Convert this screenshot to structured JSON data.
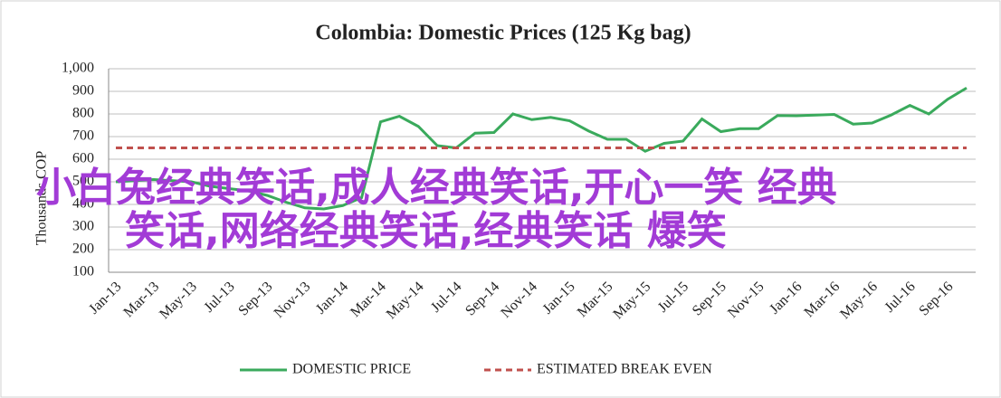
{
  "chart_data": {
    "type": "line",
    "title": "Colombia:  Domestic Prices (125 Kg bag)",
    "y_label": "Thousands COP",
    "categories": [
      "Jan-13",
      null,
      "Mar-13",
      null,
      "May-13",
      null,
      "Jul-13",
      null,
      "Sep-13",
      null,
      "Nov-13",
      null,
      "Jan-14",
      null,
      "Mar-14",
      null,
      "May-14",
      null,
      "Jul-14",
      null,
      "Sep-14",
      null,
      "Nov-14",
      null,
      "Jan-15",
      null,
      "Mar-15",
      null,
      "May-15",
      null,
      "Jul-15",
      null,
      "Sep-15",
      null,
      "Nov-15",
      null,
      "Jan-16",
      null,
      "Mar-16",
      null,
      "May-16",
      null,
      "Jul-16",
      null,
      "Sep-16",
      null
    ],
    "series": [
      {
        "name": "DOMESTIC PRICE",
        "color": "#3aaa5c",
        "dashed": false,
        "values": [
          500,
          505,
          510,
          505,
          500,
          480,
          470,
          460,
          440,
          410,
          385,
          380,
          395,
          430,
          765,
          790,
          745,
          660,
          650,
          715,
          718,
          800,
          775,
          785,
          770,
          725,
          688,
          688,
          635,
          670,
          680,
          778,
          722,
          735,
          735,
          793,
          792,
          795,
          798,
          755,
          760,
          795,
          838,
          800,
          865,
          915
        ]
      },
      {
        "name": "ESTIMATED BREAK EVEN",
        "color": "#c0504d",
        "dashed": true,
        "values": [
          650,
          650,
          650,
          650,
          650,
          650,
          650,
          650,
          650,
          650,
          650,
          650,
          650,
          650,
          650,
          650,
          650,
          650,
          650,
          650,
          650,
          650,
          650,
          650,
          650,
          650,
          650,
          650,
          650,
          650,
          650,
          650,
          650,
          650,
          650,
          650,
          650,
          650,
          650,
          650,
          650,
          650,
          650,
          650,
          650,
          650
        ]
      }
    ],
    "ylim": [
      100,
      1000
    ],
    "yticks": [
      100,
      200,
      300,
      400,
      500,
      600,
      700,
      800,
      900,
      {
        "value": 1000,
        "label": "1,000"
      }
    ],
    "grid": true,
    "legend": "bottom",
    "overlay_text": [
      "小白兔经典笑话,成人经典笑话,开心一笑 经典",
      "笑话,网络经典笑话,经典笑话 爆笑"
    ]
  }
}
